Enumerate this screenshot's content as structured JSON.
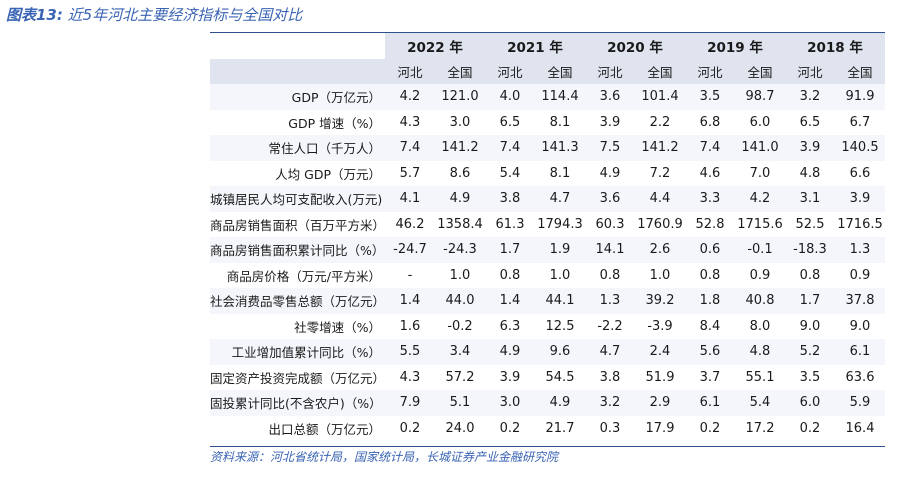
{
  "title": {
    "prefix": "图表13:",
    "text": "近5年河北主要经济指标与全国对比"
  },
  "years": [
    "2022 年",
    "2021 年",
    "2020 年",
    "2019 年",
    "2018 年"
  ],
  "subheaders": [
    "河北",
    "全国"
  ],
  "rows": [
    {
      "label": "GDP（万亿元）",
      "values": [
        "4.2",
        "121.0",
        "4.0",
        "114.4",
        "3.6",
        "101.4",
        "3.5",
        "98.7",
        "3.2",
        "91.9"
      ]
    },
    {
      "label": "GDP 增速（%）",
      "values": [
        "4.3",
        "3.0",
        "6.5",
        "8.1",
        "3.9",
        "2.2",
        "6.8",
        "6.0",
        "6.5",
        "6.7"
      ]
    },
    {
      "label": "常住人口（千万人）",
      "values": [
        "7.4",
        "141.2",
        "7.4",
        "141.3",
        "7.5",
        "141.2",
        "7.4",
        "141.0",
        "3.9",
        "140.5"
      ]
    },
    {
      "label": "人均 GDP（万元）",
      "values": [
        "5.7",
        "8.6",
        "5.4",
        "8.1",
        "4.9",
        "7.2",
        "4.6",
        "7.0",
        "4.8",
        "6.6"
      ]
    },
    {
      "label": "城镇居民人均可支配收入(万元)",
      "values": [
        "4.1",
        "4.9",
        "3.8",
        "4.7",
        "3.6",
        "4.4",
        "3.3",
        "4.2",
        "3.1",
        "3.9"
      ]
    },
    {
      "label": "商品房销售面积（百万平方米）",
      "values": [
        "46.2",
        "1358.4",
        "61.3",
        "1794.3",
        "60.3",
        "1760.9",
        "52.8",
        "1715.6",
        "52.5",
        "1716.5"
      ]
    },
    {
      "label": "商品房销售面积累计同比（%）",
      "values": [
        "-24.7",
        "-24.3",
        "1.7",
        "1.9",
        "14.1",
        "2.6",
        "0.6",
        "-0.1",
        "-18.3",
        "1.3"
      ]
    },
    {
      "label": "商品房价格（万元/平方米）",
      "values": [
        "-",
        "1.0",
        "0.8",
        "1.0",
        "0.8",
        "1.0",
        "0.8",
        "0.9",
        "0.8",
        "0.9"
      ]
    },
    {
      "label": "社会消费品零售总额（万亿元）",
      "values": [
        "1.4",
        "44.0",
        "1.4",
        "44.1",
        "1.3",
        "39.2",
        "1.8",
        "40.8",
        "1.7",
        "37.8"
      ]
    },
    {
      "label": "社零增速（%）",
      "values": [
        "1.6",
        "-0.2",
        "6.3",
        "12.5",
        "-2.2",
        "-3.9",
        "8.4",
        "8.0",
        "9.0",
        "9.0"
      ]
    },
    {
      "label": "工业增加值累计同比（%）",
      "values": [
        "5.5",
        "3.4",
        "4.9",
        "9.6",
        "4.7",
        "2.4",
        "5.6",
        "4.8",
        "5.2",
        "6.1"
      ]
    },
    {
      "label": "固定资产投资完成额（万亿元）",
      "values": [
        "4.3",
        "57.2",
        "3.9",
        "54.5",
        "3.8",
        "51.9",
        "3.7",
        "55.1",
        "3.5",
        "63.6"
      ]
    },
    {
      "label": "固投累计同比(不含农户)（%）",
      "values": [
        "7.9",
        "5.1",
        "3.0",
        "4.9",
        "3.2",
        "2.9",
        "6.1",
        "5.4",
        "6.0",
        "5.9"
      ]
    },
    {
      "label": "出口总额（万亿元）",
      "values": [
        "0.2",
        "24.0",
        "0.2",
        "21.7",
        "0.3",
        "17.9",
        "0.2",
        "17.2",
        "0.2",
        "16.4"
      ]
    }
  ],
  "source": "资料来源：河北省统计局，国家统计局，长城证券产业金融研究院"
}
